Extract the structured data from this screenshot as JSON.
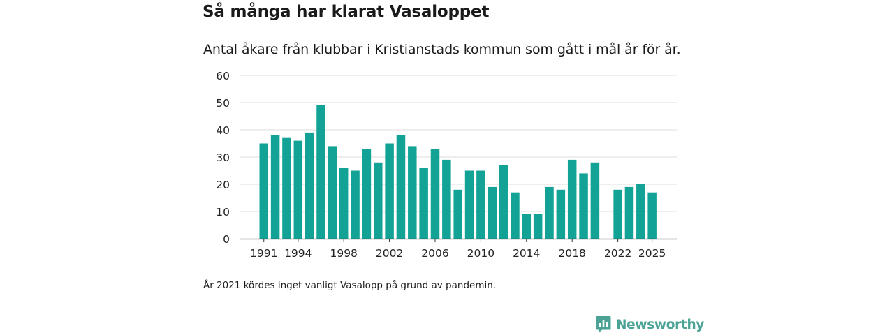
{
  "header": {
    "title": "Så många har klarat Vasaloppet",
    "subtitle": "Antal åkare från klubbar i Kristianstads kommun som gått i mål år för år."
  },
  "footnote": "År 2021 kördes inget vanligt Vasalopp på grund av pandemin.",
  "brand": {
    "name": "Newsworthy",
    "icon": "newsworthy-logo-icon",
    "color": "#4aa394"
  },
  "colors": {
    "bar": "#12a396",
    "grid": "#dddddd",
    "axis": "#333333",
    "text": "#222222"
  },
  "chart_data": {
    "type": "bar",
    "title": "Så många har klarat Vasaloppet",
    "subtitle": "Antal åkare från klubbar i Kristianstads kommun som gått i mål år för år.",
    "xlabel": "",
    "ylabel": "",
    "ylim": [
      0,
      60
    ],
    "yticks": [
      0,
      10,
      20,
      30,
      40,
      50,
      60
    ],
    "xticks": [
      1991,
      1994,
      1998,
      2002,
      2006,
      2010,
      2014,
      2018,
      2022,
      2025
    ],
    "grid": true,
    "x": [
      1991,
      1992,
      1993,
      1994,
      1995,
      1996,
      1997,
      1998,
      1999,
      2000,
      2001,
      2002,
      2003,
      2004,
      2005,
      2006,
      2007,
      2008,
      2009,
      2010,
      2011,
      2012,
      2013,
      2014,
      2015,
      2016,
      2017,
      2018,
      2019,
      2020,
      2021,
      2022,
      2023,
      2024,
      2025
    ],
    "values": [
      35,
      38,
      37,
      36,
      39,
      49,
      34,
      26,
      25,
      33,
      28,
      35,
      38,
      34,
      26,
      33,
      29,
      18,
      25,
      25,
      19,
      27,
      17,
      9,
      9,
      19,
      18,
      29,
      24,
      28,
      null,
      18,
      19,
      20,
      17
    ]
  }
}
